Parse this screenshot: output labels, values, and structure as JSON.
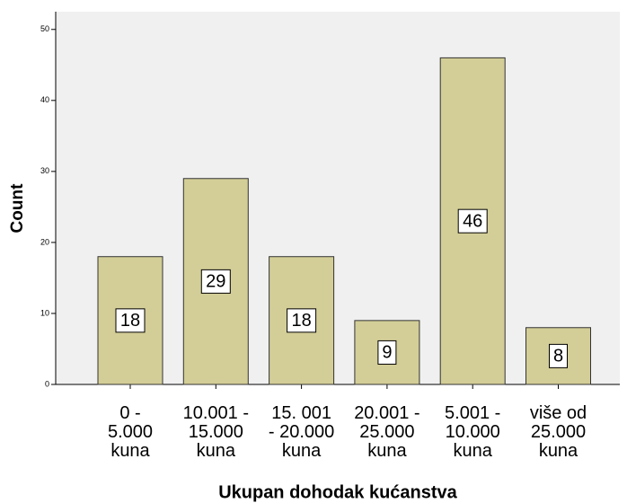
{
  "chart_data": {
    "type": "bar",
    "xlabel": "Ukupan dohodak kućanstva",
    "ylabel": "Count",
    "categories": [
      "0 -\n5.000\nkuna",
      "10.001 -\n15.000\nkuna",
      "15. 001\n- 20.000\nkuna",
      "20.001 -\n25.000\nkuna",
      "5.001 -\n10.000\nkuna",
      "više od\n25.000\nkuna"
    ],
    "values": [
      18,
      29,
      18,
      9,
      46,
      8
    ],
    "color": "#d3ce97",
    "ylim": [
      0,
      52.5
    ],
    "yticks": [
      0,
      10,
      20,
      30,
      40,
      50
    ]
  }
}
